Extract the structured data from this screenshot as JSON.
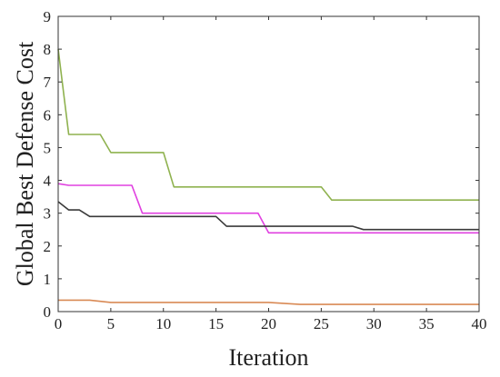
{
  "chart_data": {
    "type": "line",
    "title": "",
    "xlabel": "Iteration",
    "ylabel": "Global Best Defense Cost",
    "xlim": [
      0,
      40
    ],
    "ylim": [
      0,
      9
    ],
    "xticks": [
      0,
      5,
      10,
      15,
      20,
      25,
      30,
      35,
      40
    ],
    "yticks": [
      0,
      1,
      2,
      3,
      4,
      5,
      6,
      7,
      8,
      9
    ],
    "grid": false,
    "legend": "none",
    "series": [
      {
        "color": "#8fb24f",
        "x": [
          0,
          1,
          4,
          5,
          10,
          11,
          25,
          26,
          40
        ],
        "y": [
          8.0,
          5.4,
          5.4,
          4.85,
          4.85,
          3.8,
          3.8,
          3.4,
          3.4
        ]
      },
      {
        "color": "#e040e0",
        "x": [
          0,
          1,
          7,
          8,
          19,
          20,
          40
        ],
        "y": [
          3.9,
          3.85,
          3.85,
          3.0,
          3.0,
          2.4,
          2.4
        ]
      },
      {
        "color": "#3a3a3a",
        "x": [
          0,
          1,
          2,
          3,
          15,
          16,
          28,
          29,
          40
        ],
        "y": [
          3.35,
          3.1,
          3.1,
          2.9,
          2.9,
          2.6,
          2.6,
          2.5,
          2.5
        ]
      },
      {
        "color": "#d98a55",
        "x": [
          0,
          3,
          5,
          20,
          23,
          40
        ],
        "y": [
          0.35,
          0.35,
          0.28,
          0.28,
          0.22,
          0.22
        ]
      }
    ]
  }
}
